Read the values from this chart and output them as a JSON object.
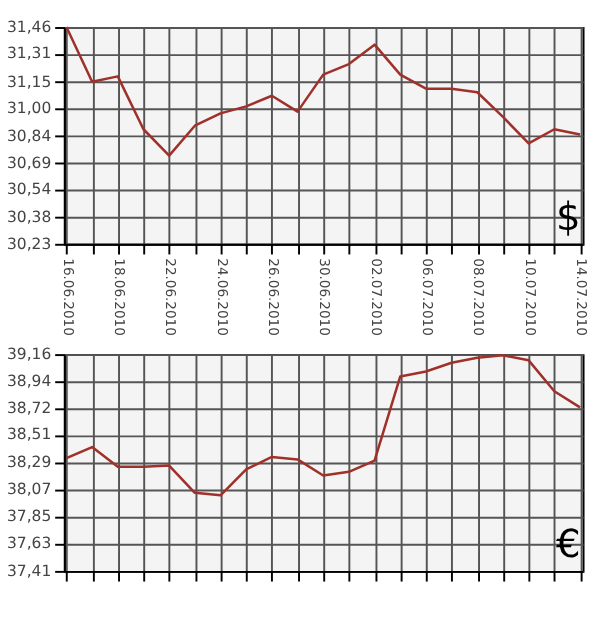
{
  "chart_data": [
    {
      "type": "line",
      "categories": [
        "16.06.2010",
        null,
        "18.06.2010",
        null,
        "22.06.2010",
        null,
        "24.06.2010",
        null,
        "26.06.2010",
        null,
        "30.06.2010",
        null,
        "02.07.2010",
        null,
        "06.07.2010",
        null,
        "08.07.2010",
        null,
        "10.07.2010",
        null,
        "14.07.2010"
      ],
      "values": [
        31.46,
        31.15,
        31.18,
        30.88,
        30.73,
        30.9,
        30.97,
        31.01,
        31.07,
        30.98,
        31.19,
        31.25,
        31.36,
        31.19,
        31.11,
        31.11,
        31.09,
        30.95,
        30.8,
        30.88,
        30.85
      ],
      "color": "#a0302a",
      "ylim": [
        30.23,
        31.46
      ],
      "yticks": [
        {
          "value": 30.23,
          "label": "30,23"
        },
        {
          "value": 30.38,
          "label": "30,38"
        },
        {
          "value": 30.54,
          "label": "30,54"
        },
        {
          "value": 30.69,
          "label": "30,69"
        },
        {
          "value": 30.84,
          "label": "30,84"
        },
        {
          "value": 31.0,
          "label": "31,00"
        },
        {
          "value": 31.15,
          "label": "31,15"
        },
        {
          "value": 31.31,
          "label": "31,31"
        },
        {
          "value": 31.46,
          "label": "31,46"
        }
      ],
      "grid": true,
      "annotations": [
        "$"
      ]
    },
    {
      "type": "line",
      "categories": [
        "16.06.2010",
        null,
        "18.06.2010",
        null,
        "22.06.2010",
        null,
        "24.06.2010",
        null,
        "26.06.2010",
        null,
        "30.06.2010",
        null,
        "02.07.2010",
        null,
        "06.07.2010",
        null,
        "08.07.2010",
        null,
        "10.07.2010",
        null,
        "14.07.2010"
      ],
      "values": [
        38.32,
        38.41,
        38.25,
        38.25,
        38.26,
        38.04,
        38.02,
        38.23,
        38.33,
        38.31,
        38.18,
        38.21,
        38.3,
        38.98,
        39.02,
        39.09,
        39.13,
        39.15,
        39.11,
        38.86,
        38.73
      ],
      "color": "#a0302a",
      "ylim": [
        37.41,
        39.16
      ],
      "yticks": [
        {
          "value": 37.41,
          "label": "37,41"
        },
        {
          "value": 37.63,
          "label": "37,63"
        },
        {
          "value": 37.85,
          "label": "37,85"
        },
        {
          "value": 38.07,
          "label": "38,07"
        },
        {
          "value": 38.29,
          "label": "38,29"
        },
        {
          "value": 38.51,
          "label": "38,51"
        },
        {
          "value": 38.72,
          "label": "38,72"
        },
        {
          "value": 38.94,
          "label": "38,94"
        },
        {
          "value": 39.16,
          "label": "39,16"
        }
      ],
      "grid": true,
      "tick_labels": "y",
      "annotations": [
        "€"
      ]
    }
  ]
}
